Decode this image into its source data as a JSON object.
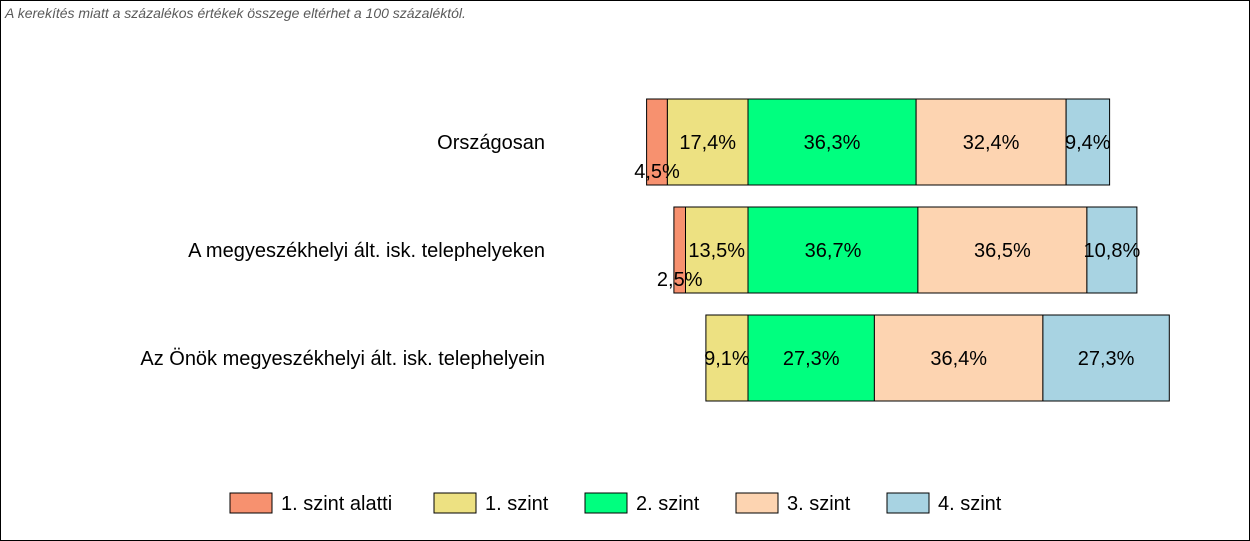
{
  "note": "A kerekítés miatt a  százalékos értékek összege eltérhet a 100 százaléktól.",
  "chart_data": {
    "type": "bar",
    "orientation": "horizontal",
    "stacked": true,
    "layout": "diverging",
    "grid": false,
    "legend_position": "bottom",
    "categories": [
      "Országosan",
      "A megyeszékhelyi ált. isk. telephelyeken",
      "Az Önök megyeszékhelyi ált. isk. telephelyein"
    ],
    "series": [
      {
        "name": "1. szint alatti",
        "color": "#f7916f",
        "values": [
          4.5,
          2.5,
          0
        ],
        "labels": [
          "4,5%",
          "2,5%",
          ""
        ]
      },
      {
        "name": "1. szint",
        "color": "#ede182",
        "values": [
          17.4,
          13.5,
          9.1
        ],
        "labels": [
          "17,4%",
          "13,5%",
          "9,1%"
        ]
      },
      {
        "name": "2. szint",
        "color": "#00ff7f",
        "values": [
          36.3,
          36.7,
          27.3
        ],
        "labels": [
          "36,3%",
          "36,7%",
          "27,3%"
        ]
      },
      {
        "name": "3. szint",
        "color": "#fdd4b1",
        "values": [
          32.4,
          36.5,
          36.4
        ],
        "labels": [
          "32,4%",
          "36,5%",
          "36,4%"
        ]
      },
      {
        "name": "4. szint",
        "color": "#a8d3e2",
        "values": [
          9.4,
          10.8,
          27.3
        ],
        "labels": [
          "9,4%",
          "10,8%",
          "27,3%"
        ]
      }
    ]
  }
}
